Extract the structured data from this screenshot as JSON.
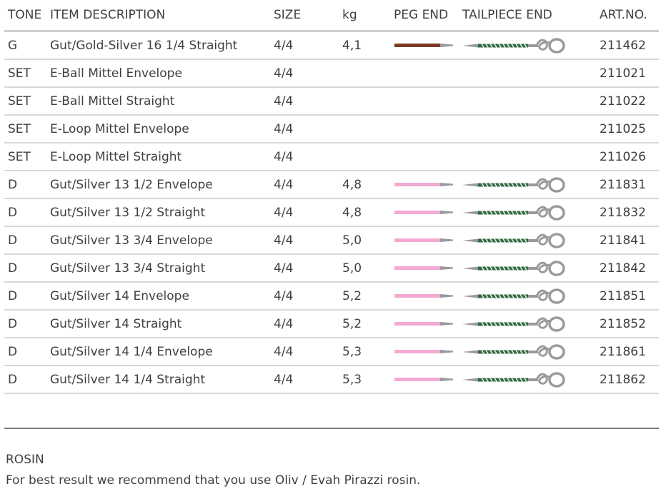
{
  "table": {
    "headers": {
      "tone": "TONE",
      "description": "ITEM DESCRIPTION",
      "size": "SIZE",
      "kg": "kg",
      "peg_end": "PEG END",
      "tailpiece_end": "TAILPIECE END",
      "art_no": "ART.NO."
    },
    "colors": {
      "peg_brown": "#7a3a25",
      "peg_pink": "#f2a9d2",
      "tail_green": "#2d6b3f",
      "metal_gray": "#9a9a9a"
    },
    "rows": [
      {
        "tone": "G",
        "description": "Gut/Gold-Silver 16 1/4 Straight",
        "size": "4/4",
        "kg": "4,1",
        "peg": "brown",
        "tail": true,
        "art_no": "211462"
      },
      {
        "tone": "SET",
        "description": "E-Ball Mittel Envelope",
        "size": "4/4",
        "kg": "",
        "peg": "",
        "tail": false,
        "art_no": "211021"
      },
      {
        "tone": "SET",
        "description": "E-Ball Mittel Straight",
        "size": "4/4",
        "kg": "",
        "peg": "",
        "tail": false,
        "art_no": "211022"
      },
      {
        "tone": "SET",
        "description": "E-Loop Mittel Envelope",
        "size": "4/4",
        "kg": "",
        "peg": "",
        "tail": false,
        "art_no": "211025"
      },
      {
        "tone": "SET",
        "description": "E-Loop Mittel Straight",
        "size": "4/4",
        "kg": "",
        "peg": "",
        "tail": false,
        "art_no": "211026"
      },
      {
        "tone": "D",
        "description": "Gut/Silver 13 1/2 Envelope",
        "size": "4/4",
        "kg": "4,8",
        "peg": "pink",
        "tail": true,
        "art_no": "211831"
      },
      {
        "tone": "D",
        "description": "Gut/Silver 13 1/2 Straight",
        "size": "4/4",
        "kg": "4,8",
        "peg": "pink",
        "tail": true,
        "art_no": "211832"
      },
      {
        "tone": "D",
        "description": "Gut/Silver 13 3/4 Envelope",
        "size": "4/4",
        "kg": "5,0",
        "peg": "pink",
        "tail": true,
        "art_no": "211841"
      },
      {
        "tone": "D",
        "description": "Gut/Silver 13 3/4 Straight",
        "size": "4/4",
        "kg": "5,0",
        "peg": "pink",
        "tail": true,
        "art_no": "211842"
      },
      {
        "tone": "D",
        "description": "Gut/Silver 14 Envelope",
        "size": "4/4",
        "kg": "5,2",
        "peg": "pink",
        "tail": true,
        "art_no": "211851"
      },
      {
        "tone": "D",
        "description": "Gut/Silver 14 Straight",
        "size": "4/4",
        "kg": "5,2",
        "peg": "pink",
        "tail": true,
        "art_no": "211852"
      },
      {
        "tone": "D",
        "description": "Gut/Silver 14 1/4 Envelope",
        "size": "4/4",
        "kg": "5,3",
        "peg": "pink",
        "tail": true,
        "art_no": "211861"
      },
      {
        "tone": "D",
        "description": "Gut/Silver 14 1/4 Straight",
        "size": "4/4",
        "kg": "5,3",
        "peg": "pink",
        "tail": true,
        "art_no": "211862"
      }
    ]
  },
  "rosin": {
    "title": "ROSIN",
    "text": "For best result we recommend that you use Oliv / Evah Pirazzi rosin."
  }
}
